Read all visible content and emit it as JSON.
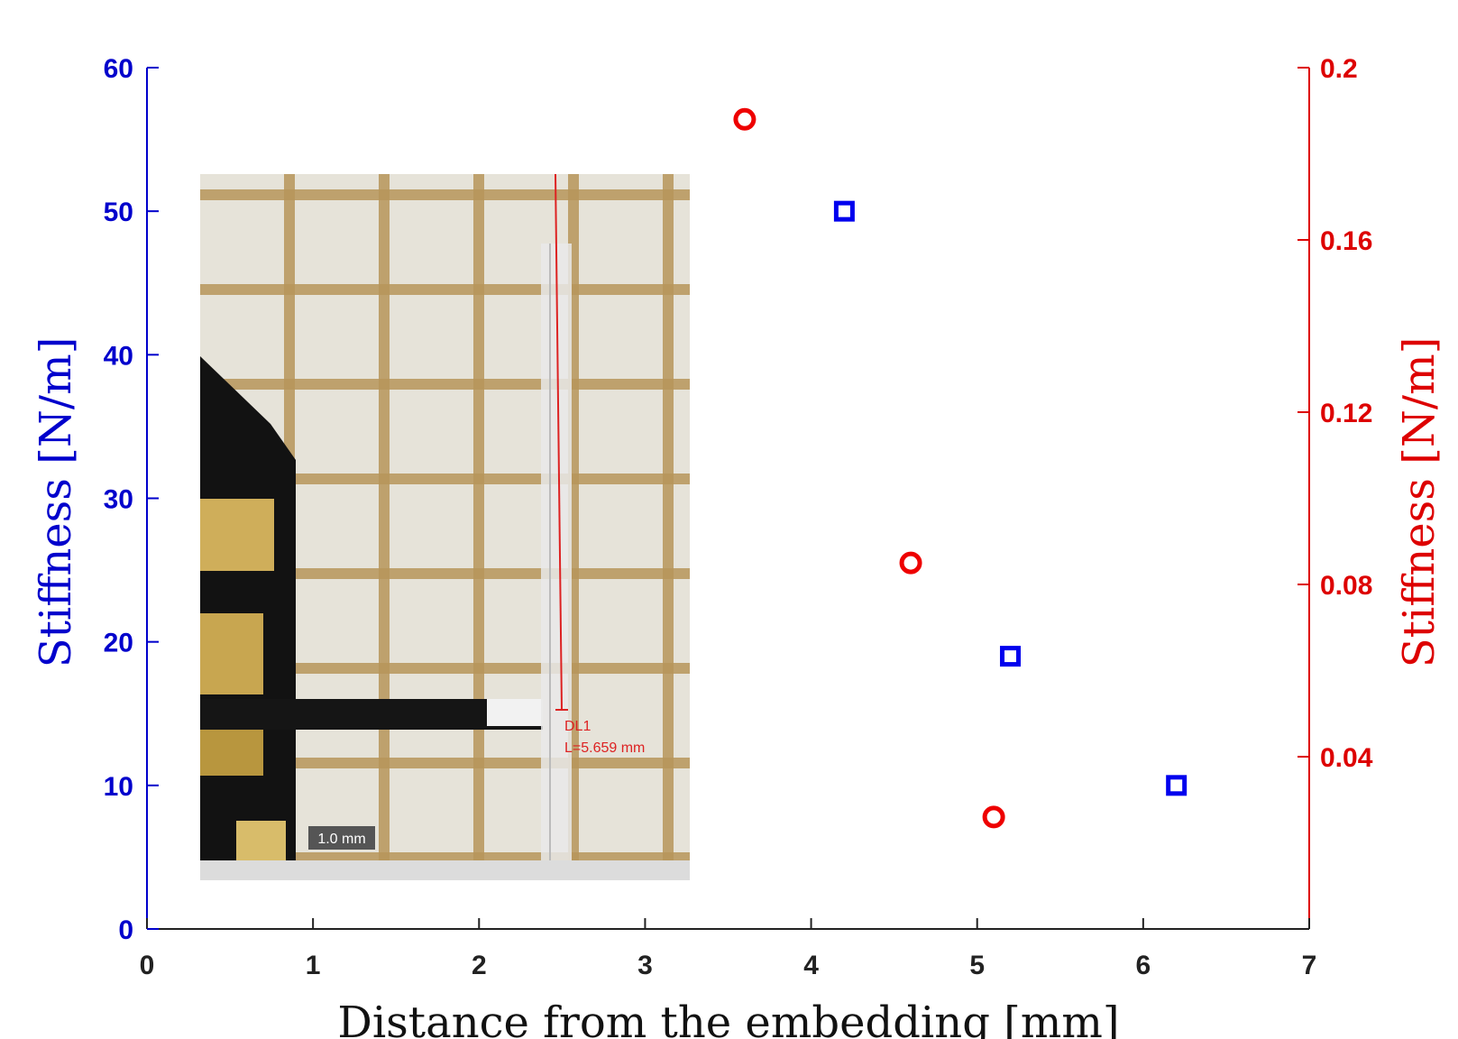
{
  "chart_data": {
    "type": "scatter",
    "title": "",
    "xlabel": "Distance from the embedding [mm]",
    "ylabel_left": "Stiffness [N/m]",
    "ylabel_right": "Stiffness [N/m]",
    "xlim": [
      0,
      7
    ],
    "ylim_left": [
      0,
      60
    ],
    "ylim_right": [
      0,
      0.2
    ],
    "x_ticks": [
      "0",
      "1",
      "2",
      "3",
      "4",
      "5",
      "6",
      "7"
    ],
    "y_left_ticks": [
      "0",
      "10",
      "20",
      "30",
      "40",
      "50",
      "60"
    ],
    "y_right_ticks": [
      "0.04",
      "0.08",
      "0.12",
      "0.16",
      "0.2"
    ],
    "grid": false,
    "colors": {
      "left": "#0000cc",
      "right": "#dd0000",
      "axis": "#222222"
    },
    "series": [
      {
        "axis": "left",
        "marker": "square",
        "color": "#0000ee",
        "x": [
          4.2,
          5.2,
          6.2
        ],
        "y": [
          50,
          19,
          10
        ]
      },
      {
        "axis": "right",
        "marker": "circle",
        "color": "#ee0000",
        "x": [
          3.6,
          4.6,
          5.1
        ],
        "y": [
          0.188,
          0.085,
          0.026
        ]
      }
    ],
    "inset": {
      "measure_label": "DL1",
      "measure_value": "L=5.659 mm",
      "scale_bar": "1.0 mm"
    }
  }
}
